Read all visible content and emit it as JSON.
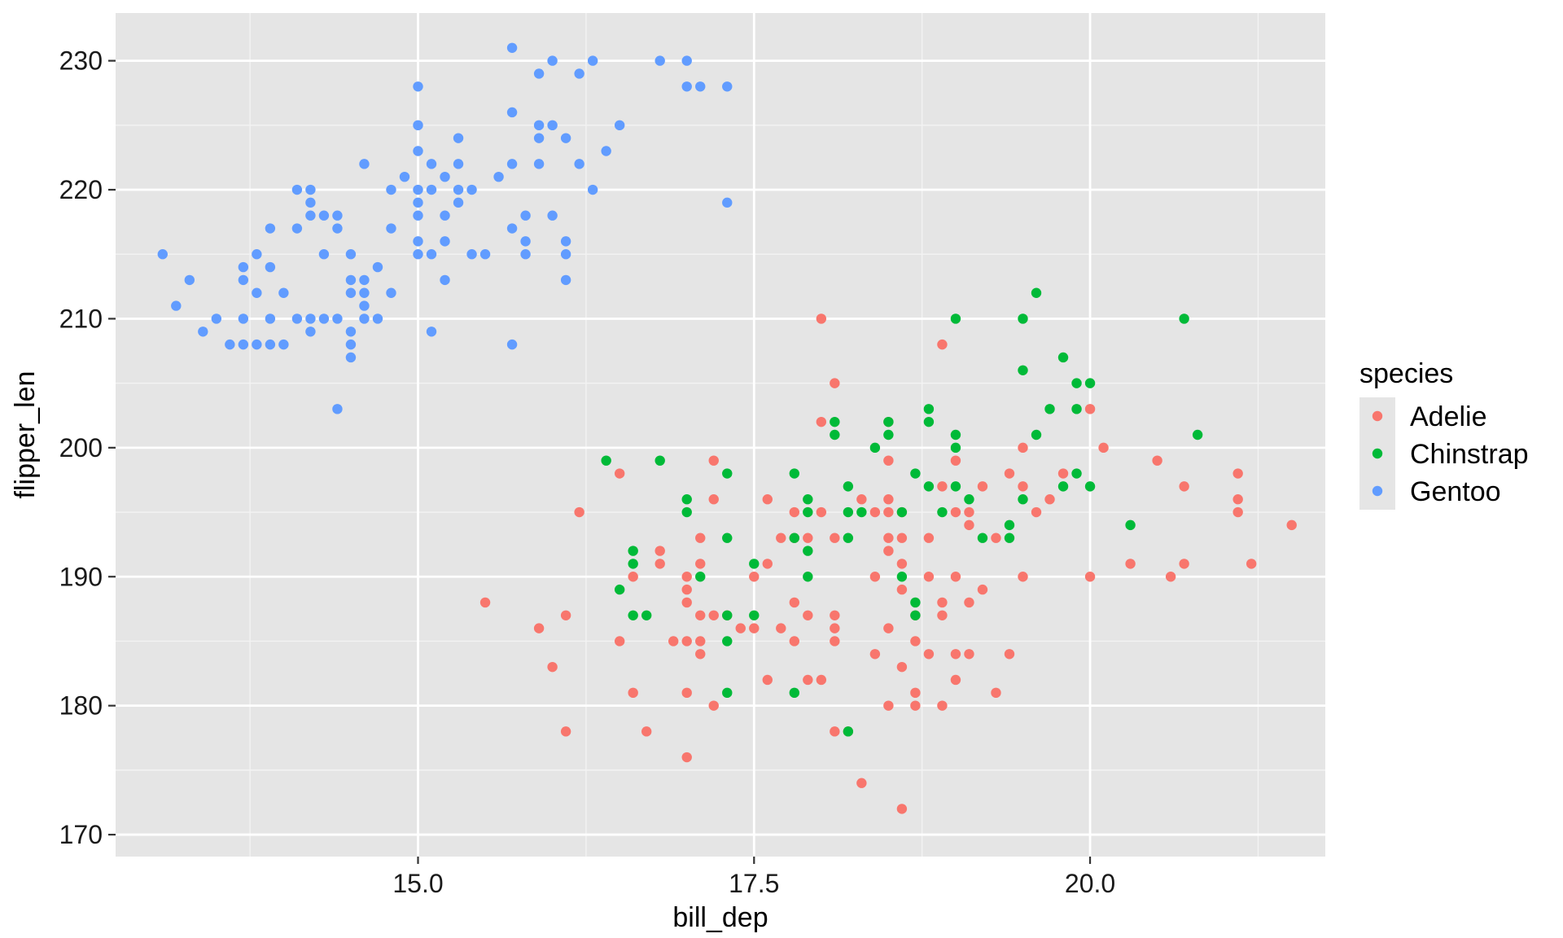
{
  "chart_data": {
    "type": "scatter",
    "xlabel": "bill_dep",
    "ylabel": "flipper_len",
    "xlim": [
      12.75,
      21.75
    ],
    "ylim": [
      168.3,
      233.7
    ],
    "x_ticks": [
      15.0,
      17.5,
      20.0
    ],
    "x_tick_labels": [
      "15.0",
      "17.5",
      "20.0"
    ],
    "x_minor_ticks": [
      13.75,
      16.25,
      18.75,
      21.25
    ],
    "y_ticks": [
      170,
      180,
      190,
      200,
      210,
      220,
      230
    ],
    "y_tick_labels": [
      "170",
      "180",
      "190",
      "200",
      "210",
      "220",
      "230"
    ],
    "y_minor_ticks": [
      175,
      185,
      195,
      205,
      215,
      225
    ],
    "grid": true,
    "legend": {
      "title": "species",
      "position": "right",
      "entries": [
        "Adelie",
        "Chinstrap",
        "Gentoo"
      ]
    },
    "series": [
      {
        "name": "Adelie",
        "color": "#F8766D",
        "points": [
          [
            15.5,
            188
          ],
          [
            16.5,
            198
          ],
          [
            16.2,
            195
          ],
          [
            15.9,
            186
          ],
          [
            16.0,
            183
          ],
          [
            16.1,
            187
          ],
          [
            16.1,
            178
          ],
          [
            16.5,
            185
          ],
          [
            16.6,
            190
          ],
          [
            16.6,
            181
          ],
          [
            16.7,
            178
          ],
          [
            16.8,
            192
          ],
          [
            16.8,
            191
          ],
          [
            16.9,
            185
          ],
          [
            17.0,
            190
          ],
          [
            17.0,
            189
          ],
          [
            17.0,
            188
          ],
          [
            17.0,
            185
          ],
          [
            17.0,
            181
          ],
          [
            17.0,
            176
          ],
          [
            17.1,
            193
          ],
          [
            17.1,
            191
          ],
          [
            17.1,
            187
          ],
          [
            17.1,
            185
          ],
          [
            17.1,
            184
          ],
          [
            17.2,
            199
          ],
          [
            17.2,
            196
          ],
          [
            17.2,
            187
          ],
          [
            17.2,
            180
          ],
          [
            17.3,
            187
          ],
          [
            17.4,
            186
          ],
          [
            17.5,
            190
          ],
          [
            17.5,
            186
          ],
          [
            17.6,
            196
          ],
          [
            17.6,
            191
          ],
          [
            17.6,
            182
          ],
          [
            17.7,
            193
          ],
          [
            17.7,
            186
          ],
          [
            17.8,
            195
          ],
          [
            17.8,
            193
          ],
          [
            17.8,
            188
          ],
          [
            17.8,
            185
          ],
          [
            17.9,
            193
          ],
          [
            17.9,
            187
          ],
          [
            17.9,
            182
          ],
          [
            18.0,
            210
          ],
          [
            18.0,
            202
          ],
          [
            18.0,
            195
          ],
          [
            18.0,
            182
          ],
          [
            18.1,
            205
          ],
          [
            18.1,
            193
          ],
          [
            18.1,
            187
          ],
          [
            18.1,
            186
          ],
          [
            18.1,
            185
          ],
          [
            18.1,
            178
          ],
          [
            18.2,
            178
          ],
          [
            18.3,
            196
          ],
          [
            18.3,
            174
          ],
          [
            18.4,
            195
          ],
          [
            18.4,
            190
          ],
          [
            18.4,
            184
          ],
          [
            18.5,
            202
          ],
          [
            18.5,
            199
          ],
          [
            18.5,
            196
          ],
          [
            18.5,
            195
          ],
          [
            18.5,
            193
          ],
          [
            18.5,
            192
          ],
          [
            18.5,
            186
          ],
          [
            18.5,
            180
          ],
          [
            18.6,
            195
          ],
          [
            18.6,
            193
          ],
          [
            18.6,
            191
          ],
          [
            18.6,
            189
          ],
          [
            18.6,
            183
          ],
          [
            18.6,
            172
          ],
          [
            18.7,
            187
          ],
          [
            18.7,
            185
          ],
          [
            18.7,
            181
          ],
          [
            18.7,
            180
          ],
          [
            18.8,
            193
          ],
          [
            18.8,
            190
          ],
          [
            18.8,
            184
          ],
          [
            18.9,
            208
          ],
          [
            18.9,
            197
          ],
          [
            18.9,
            188
          ],
          [
            18.9,
            187
          ],
          [
            18.9,
            180
          ],
          [
            19.0,
            199
          ],
          [
            19.0,
            195
          ],
          [
            19.0,
            190
          ],
          [
            19.0,
            184
          ],
          [
            19.0,
            182
          ],
          [
            19.1,
            195
          ],
          [
            19.1,
            194
          ],
          [
            19.1,
            188
          ],
          [
            19.1,
            184
          ],
          [
            19.2,
            197
          ],
          [
            19.2,
            189
          ],
          [
            19.3,
            193
          ],
          [
            19.3,
            181
          ],
          [
            19.4,
            198
          ],
          [
            19.4,
            184
          ],
          [
            19.5,
            200
          ],
          [
            19.5,
            197
          ],
          [
            19.5,
            190
          ],
          [
            19.6,
            195
          ],
          [
            19.7,
            196
          ],
          [
            19.8,
            198
          ],
          [
            20.0,
            203
          ],
          [
            20.0,
            190
          ],
          [
            20.1,
            200
          ],
          [
            20.3,
            191
          ],
          [
            20.5,
            199
          ],
          [
            20.6,
            190
          ],
          [
            20.7,
            197
          ],
          [
            20.7,
            191
          ],
          [
            21.1,
            198
          ],
          [
            21.1,
            196
          ],
          [
            21.1,
            195
          ],
          [
            21.2,
            191
          ],
          [
            21.5,
            194
          ]
        ]
      },
      {
        "name": "Chinstrap",
        "color": "#00BA38",
        "points": [
          [
            16.4,
            199
          ],
          [
            16.5,
            189
          ],
          [
            16.6,
            192
          ],
          [
            16.6,
            191
          ],
          [
            16.6,
            187
          ],
          [
            16.7,
            187
          ],
          [
            16.8,
            199
          ],
          [
            17.0,
            196
          ],
          [
            17.0,
            195
          ],
          [
            17.1,
            190
          ],
          [
            17.3,
            198
          ],
          [
            17.3,
            193
          ],
          [
            17.3,
            187
          ],
          [
            17.3,
            185
          ],
          [
            17.3,
            181
          ],
          [
            17.5,
            191
          ],
          [
            17.5,
            187
          ],
          [
            17.8,
            198
          ],
          [
            17.8,
            193
          ],
          [
            17.8,
            181
          ],
          [
            17.9,
            196
          ],
          [
            17.9,
            195
          ],
          [
            17.9,
            192
          ],
          [
            17.9,
            190
          ],
          [
            18.1,
            202
          ],
          [
            18.1,
            201
          ],
          [
            18.2,
            197
          ],
          [
            18.2,
            195
          ],
          [
            18.2,
            193
          ],
          [
            18.2,
            178
          ],
          [
            18.3,
            195
          ],
          [
            18.4,
            200
          ],
          [
            18.5,
            202
          ],
          [
            18.5,
            201
          ],
          [
            18.6,
            195
          ],
          [
            18.6,
            190
          ],
          [
            18.7,
            198
          ],
          [
            18.7,
            188
          ],
          [
            18.7,
            187
          ],
          [
            18.8,
            203
          ],
          [
            18.8,
            202
          ],
          [
            18.8,
            197
          ],
          [
            18.9,
            195
          ],
          [
            19.0,
            210
          ],
          [
            19.0,
            201
          ],
          [
            19.0,
            200
          ],
          [
            19.0,
            197
          ],
          [
            19.1,
            196
          ],
          [
            19.2,
            193
          ],
          [
            19.4,
            194
          ],
          [
            19.4,
            193
          ],
          [
            19.5,
            210
          ],
          [
            19.5,
            206
          ],
          [
            19.5,
            196
          ],
          [
            19.6,
            212
          ],
          [
            19.6,
            201
          ],
          [
            19.7,
            203
          ],
          [
            19.8,
            207
          ],
          [
            19.8,
            197
          ],
          [
            19.9,
            205
          ],
          [
            19.9,
            203
          ],
          [
            19.9,
            198
          ],
          [
            20.0,
            205
          ],
          [
            20.0,
            197
          ],
          [
            20.3,
            194
          ],
          [
            20.7,
            210
          ],
          [
            20.8,
            201
          ]
        ]
      },
      {
        "name": "Gentoo",
        "color": "#619CFF",
        "points": [
          [
            13.1,
            215
          ],
          [
            13.2,
            211
          ],
          [
            13.3,
            213
          ],
          [
            13.4,
            209
          ],
          [
            13.5,
            210
          ],
          [
            13.6,
            208
          ],
          [
            13.7,
            214
          ],
          [
            13.7,
            213
          ],
          [
            13.7,
            210
          ],
          [
            13.7,
            208
          ],
          [
            13.8,
            215
          ],
          [
            13.8,
            212
          ],
          [
            13.8,
            208
          ],
          [
            13.9,
            217
          ],
          [
            13.9,
            214
          ],
          [
            13.9,
            210
          ],
          [
            13.9,
            208
          ],
          [
            14.0,
            212
          ],
          [
            14.0,
            208
          ],
          [
            14.1,
            220
          ],
          [
            14.1,
            217
          ],
          [
            14.1,
            210
          ],
          [
            14.2,
            220
          ],
          [
            14.2,
            219
          ],
          [
            14.2,
            218
          ],
          [
            14.2,
            210
          ],
          [
            14.2,
            209
          ],
          [
            14.3,
            218
          ],
          [
            14.3,
            215
          ],
          [
            14.3,
            210
          ],
          [
            14.4,
            218
          ],
          [
            14.4,
            217
          ],
          [
            14.4,
            210
          ],
          [
            14.4,
            203
          ],
          [
            14.5,
            215
          ],
          [
            14.5,
            213
          ],
          [
            14.5,
            212
          ],
          [
            14.5,
            209
          ],
          [
            14.5,
            208
          ],
          [
            14.5,
            207
          ],
          [
            14.6,
            222
          ],
          [
            14.6,
            213
          ],
          [
            14.6,
            212
          ],
          [
            14.6,
            211
          ],
          [
            14.6,
            210
          ],
          [
            14.7,
            214
          ],
          [
            14.7,
            210
          ],
          [
            14.8,
            220
          ],
          [
            14.8,
            217
          ],
          [
            14.8,
            212
          ],
          [
            14.9,
            221
          ],
          [
            15.0,
            228
          ],
          [
            15.0,
            225
          ],
          [
            15.0,
            223
          ],
          [
            15.0,
            220
          ],
          [
            15.0,
            219
          ],
          [
            15.0,
            218
          ],
          [
            15.0,
            216
          ],
          [
            15.0,
            215
          ],
          [
            15.1,
            222
          ],
          [
            15.1,
            220
          ],
          [
            15.1,
            215
          ],
          [
            15.1,
            209
          ],
          [
            15.2,
            221
          ],
          [
            15.2,
            218
          ],
          [
            15.2,
            216
          ],
          [
            15.2,
            213
          ],
          [
            15.3,
            224
          ],
          [
            15.3,
            222
          ],
          [
            15.3,
            220
          ],
          [
            15.3,
            219
          ],
          [
            15.4,
            220
          ],
          [
            15.4,
            215
          ],
          [
            15.5,
            215
          ],
          [
            15.6,
            221
          ],
          [
            15.7,
            231
          ],
          [
            15.7,
            226
          ],
          [
            15.7,
            222
          ],
          [
            15.7,
            217
          ],
          [
            15.7,
            208
          ],
          [
            15.8,
            218
          ],
          [
            15.8,
            216
          ],
          [
            15.8,
            215
          ],
          [
            15.9,
            229
          ],
          [
            15.9,
            225
          ],
          [
            15.9,
            224
          ],
          [
            15.9,
            222
          ],
          [
            16.0,
            230
          ],
          [
            16.0,
            225
          ],
          [
            16.0,
            218
          ],
          [
            16.1,
            224
          ],
          [
            16.1,
            216
          ],
          [
            16.1,
            215
          ],
          [
            16.1,
            213
          ],
          [
            16.2,
            229
          ],
          [
            16.2,
            222
          ],
          [
            16.3,
            230
          ],
          [
            16.3,
            220
          ],
          [
            16.4,
            223
          ],
          [
            16.5,
            225
          ],
          [
            16.8,
            230
          ],
          [
            17.0,
            230
          ],
          [
            17.0,
            228
          ],
          [
            17.1,
            228
          ],
          [
            17.3,
            228
          ],
          [
            17.3,
            219
          ]
        ]
      }
    ]
  }
}
